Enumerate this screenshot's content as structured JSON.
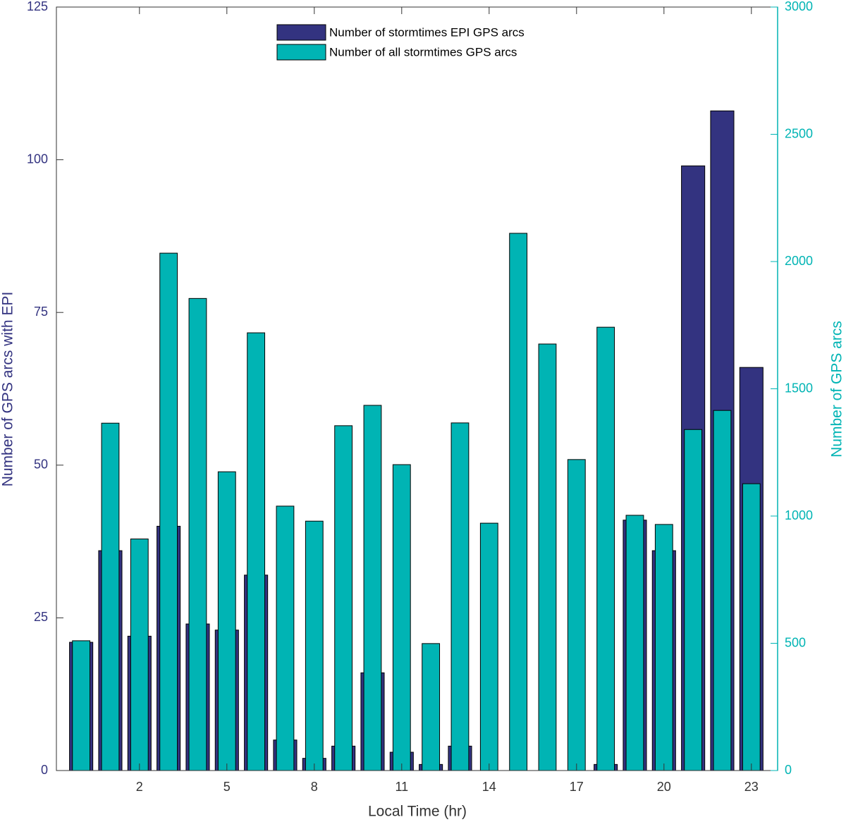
{
  "chart_data": {
    "type": "bar",
    "x_label": "Local Time (hr)",
    "y_label": "Number of GPS arcs with EPI",
    "y2_label": "Number of GPS arcs",
    "x": [
      0,
      1,
      2,
      3,
      4,
      5,
      6,
      7,
      8,
      9,
      10,
      11,
      12,
      13,
      14,
      15,
      16,
      17,
      18,
      19,
      20,
      21,
      22,
      23
    ],
    "xlim": [
      -0.85,
      23.9
    ],
    "xticks": [
      2,
      5,
      8,
      11,
      14,
      17,
      20,
      23
    ],
    "ylim": [
      0,
      125
    ],
    "yticks": [
      0,
      25,
      50,
      75,
      100,
      125
    ],
    "y2lim": [
      0,
      3000
    ],
    "y2ticks": [
      0,
      500,
      1000,
      1500,
      2000,
      2500,
      3000
    ],
    "legend": "top-center",
    "series": [
      {
        "name": "Number of stormtimes EPI GPS arcs",
        "color": "#333380",
        "values": [
          21,
          36,
          22,
          40,
          24,
          23,
          32,
          5,
          2,
          4,
          16,
          3,
          1,
          4,
          0,
          0,
          0,
          0,
          1,
          41,
          36,
          99,
          108,
          66
        ]
      },
      {
        "name": "Number of all stormtimes GPS arcs",
        "color": "#00b4b4",
        "axis": "y2",
        "values": [
          510,
          1365,
          910,
          2033,
          1855,
          1174,
          1720,
          1039,
          980,
          1355,
          1435,
          1202,
          499,
          1366,
          972,
          2111,
          1676,
          1222,
          1742,
          1003,
          967,
          1340,
          1415,
          1127
        ]
      }
    ]
  }
}
